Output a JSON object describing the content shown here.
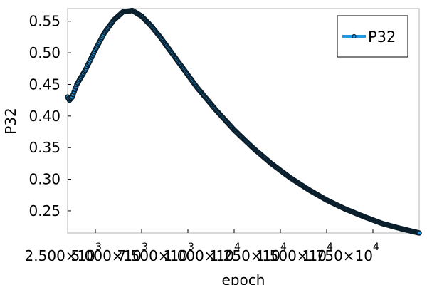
{
  "chart_data": {
    "type": "line",
    "xlabel": "epoch",
    "ylabel": "P32",
    "xlim": [
      1000,
      20000
    ],
    "ylim": [
      0.215,
      0.57
    ],
    "x_ticks": [
      {
        "mantissa": "2.500",
        "exp": "3"
      },
      {
        "mantissa": "5.000",
        "exp": "3"
      },
      {
        "mantissa": "7.500",
        "exp": "3"
      },
      {
        "mantissa": "1.000",
        "exp": "4"
      },
      {
        "mantissa": "1.250",
        "exp": "4"
      },
      {
        "mantissa": "1.500",
        "exp": "4"
      },
      {
        "mantissa": "1.750",
        "exp": "4"
      }
    ],
    "x_tick_values": [
      2500,
      5000,
      7500,
      10000,
      12500,
      15000,
      17500
    ],
    "y_ticks": [
      "0.25",
      "0.30",
      "0.35",
      "0.40",
      "0.45",
      "0.50",
      "0.55"
    ],
    "y_tick_values": [
      0.25,
      0.3,
      0.35,
      0.4,
      0.45,
      0.5,
      0.55
    ],
    "grid": false,
    "legend_position": "top-right",
    "series": [
      {
        "name": "P32",
        "color": "#1f9be6",
        "marker_color": "#0b1e2b",
        "x": [
          1000,
          1100,
          1250,
          1500,
          2000,
          2500,
          3000,
          3500,
          4000,
          4500,
          5000,
          5500,
          6000,
          6500,
          7000,
          7500,
          8000,
          9000,
          10000,
          11000,
          12000,
          13000,
          14000,
          15000,
          16000,
          17000,
          18000,
          19000,
          20000
        ],
        "y": [
          0.43,
          0.425,
          0.43,
          0.45,
          0.475,
          0.505,
          0.532,
          0.552,
          0.565,
          0.567,
          0.558,
          0.543,
          0.525,
          0.505,
          0.485,
          0.465,
          0.445,
          0.41,
          0.378,
          0.35,
          0.325,
          0.303,
          0.284,
          0.267,
          0.253,
          0.241,
          0.23,
          0.222,
          0.215
        ]
      }
    ],
    "marker": "circle"
  }
}
